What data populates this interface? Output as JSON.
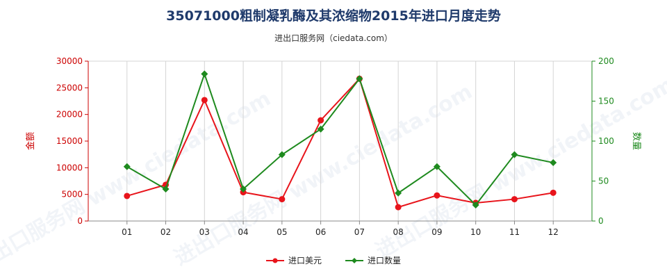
{
  "title": "35071000粗制凝乳酶及其浓缩物2015年进口月度走势",
  "subtitle": "进出口服务网（ciedata.com）",
  "watermark": "进出口服务网 www.ciedata.com",
  "colors": {
    "amount": "#e8141b",
    "quantity": "#1e8a1e",
    "left_axis": "#cc0000",
    "right_axis": "#1e8a1e"
  },
  "chart_data": {
    "type": "line",
    "categories": [
      "01",
      "02",
      "03",
      "04",
      "05",
      "06",
      "07",
      "08",
      "09",
      "10",
      "11",
      "12"
    ],
    "series": [
      {
        "name": "进口美元",
        "axis": "left",
        "values": [
          4700,
          6800,
          22700,
          5400,
          4100,
          18900,
          26700,
          2600,
          4800,
          3400,
          4100,
          5300
        ]
      },
      {
        "name": "进口数量",
        "axis": "right",
        "values": [
          68,
          40,
          184,
          40,
          83,
          115,
          178,
          35,
          68,
          20,
          83,
          73
        ]
      }
    ],
    "ylabel_left": "金额",
    "ylabel_right": "数量",
    "ylim_left": [
      0,
      30000
    ],
    "yticks_left": [
      "0",
      "5000",
      "10000",
      "15000",
      "20000",
      "25000",
      "30000"
    ],
    "ylim_right": [
      0,
      200
    ],
    "yticks_right": [
      "0",
      "50",
      "100",
      "150",
      "200"
    ],
    "grid": "vertical",
    "legend": "bottom-center"
  }
}
